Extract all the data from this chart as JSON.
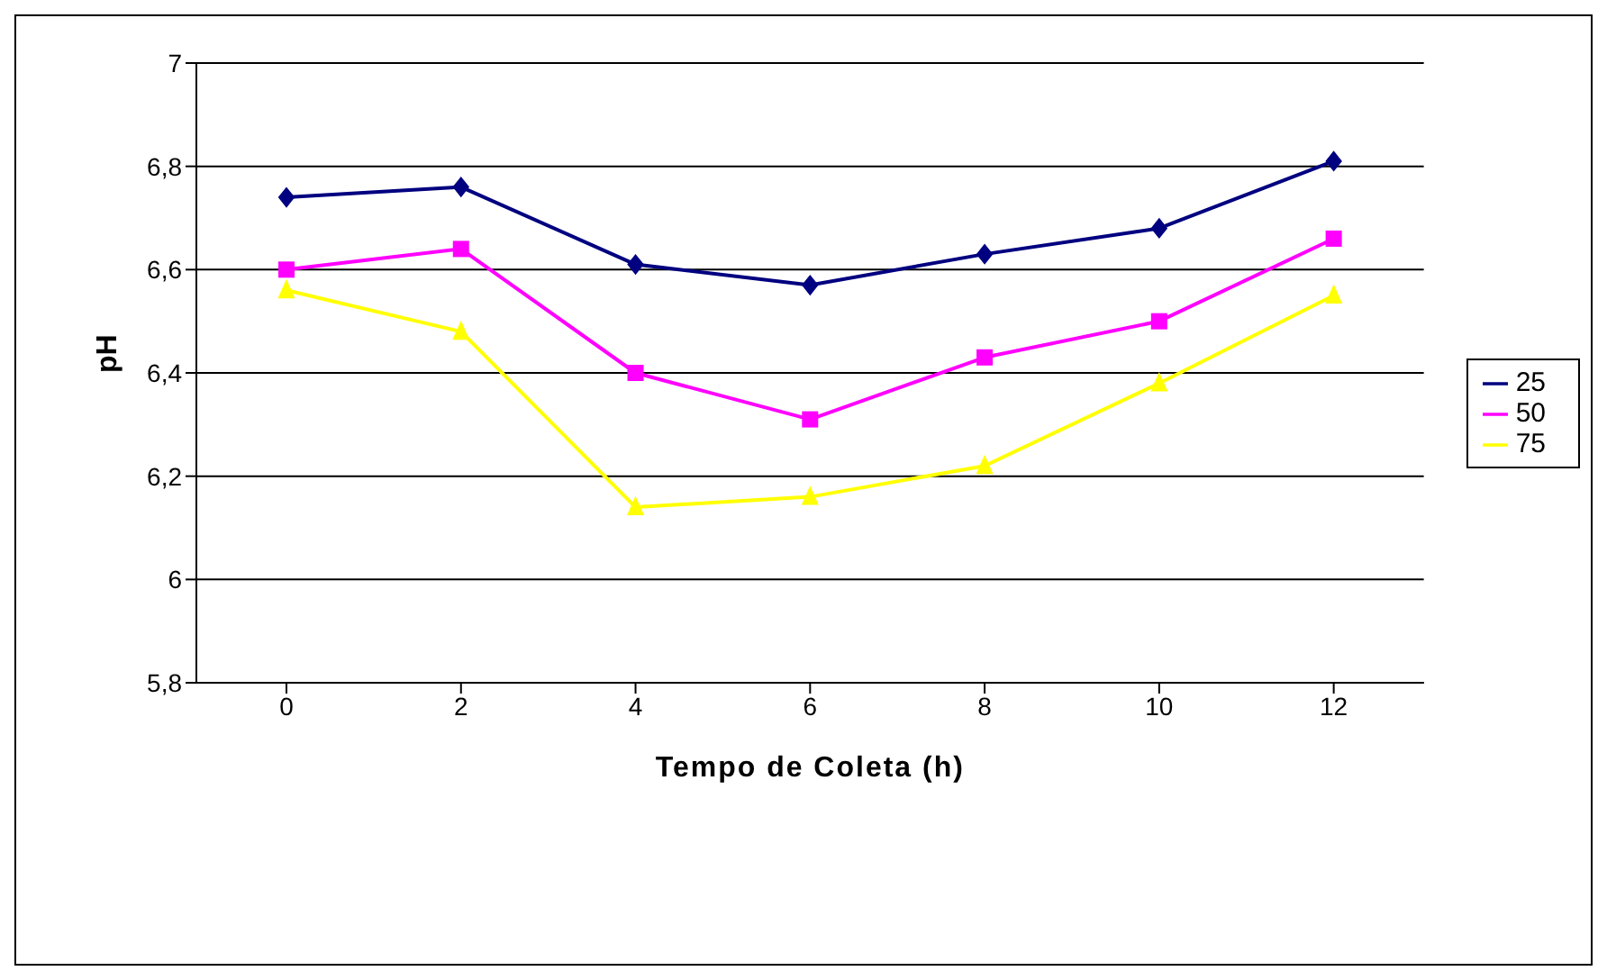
{
  "chart_data": {
    "type": "line",
    "xlabel": "Tempo de Coleta (h)",
    "ylabel": "pH",
    "categories": [
      "0",
      "2",
      "4",
      "6",
      "8",
      "10",
      "12"
    ],
    "series": [
      {
        "name": "25",
        "color": "#000080",
        "marker": "diamond",
        "values": [
          6.74,
          6.76,
          6.61,
          6.57,
          6.63,
          6.68,
          6.81
        ]
      },
      {
        "name": "50",
        "color": "#ff00ff",
        "marker": "square",
        "values": [
          6.6,
          6.64,
          6.4,
          6.31,
          6.43,
          6.5,
          6.66
        ]
      },
      {
        "name": "75",
        "color": "#ffff00",
        "marker": "triangle",
        "values": [
          6.56,
          6.48,
          6.14,
          6.16,
          6.22,
          6.38,
          6.55
        ]
      }
    ],
    "ylim": [
      5.8,
      7
    ],
    "yticks": [
      {
        "value": 5.8,
        "label": "5,8"
      },
      {
        "value": 6,
        "label": "6"
      },
      {
        "value": 6.2,
        "label": "6,2"
      },
      {
        "value": 6.4,
        "label": "6,4"
      },
      {
        "value": 6.6,
        "label": "6,6"
      },
      {
        "value": 6.8,
        "label": "6,8"
      },
      {
        "value": 7,
        "label": "7"
      }
    ],
    "grid": "y",
    "legend": "right",
    "line_style": "solid"
  }
}
